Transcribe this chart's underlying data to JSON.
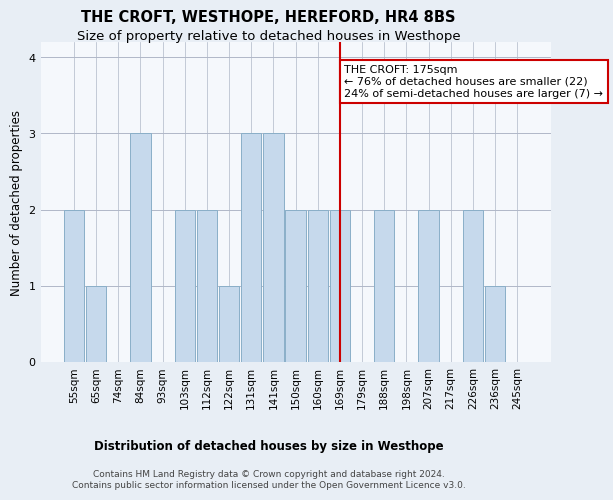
{
  "title": "THE CROFT, WESTHOPE, HEREFORD, HR4 8BS",
  "subtitle": "Size of property relative to detached houses in Westhope",
  "xlabel": "Distribution of detached houses by size in Westhope",
  "ylabel": "Number of detached properties",
  "bar_labels": [
    "55sqm",
    "65sqm",
    "74sqm",
    "84sqm",
    "93sqm",
    "103sqm",
    "112sqm",
    "122sqm",
    "131sqm",
    "141sqm",
    "150sqm",
    "160sqm",
    "169sqm",
    "179sqm",
    "188sqm",
    "198sqm",
    "207sqm",
    "217sqm",
    "226sqm",
    "236sqm",
    "245sqm"
  ],
  "bar_values": [
    2,
    1,
    0,
    3,
    0,
    2,
    2,
    1,
    3,
    3,
    2,
    2,
    2,
    0,
    2,
    0,
    2,
    0,
    2,
    1,
    0
  ],
  "bar_color": "#c6d9ec",
  "bar_edgecolor": "#8aafc8",
  "vline_index": 12,
  "vline_color": "#cc0000",
  "annotation_text": "THE CROFT: 175sqm\n← 76% of detached houses are smaller (22)\n24% of semi-detached houses are larger (7) →",
  "annotation_box_color": "#cc0000",
  "ylim": [
    0,
    4.2
  ],
  "yticks": [
    0,
    1,
    2,
    3,
    4
  ],
  "footer_line1": "Contains HM Land Registry data © Crown copyright and database right 2024.",
  "footer_line2": "Contains public sector information licensed under the Open Government Licence v3.0.",
  "background_color": "#e8eef5",
  "plot_bg_color": "#f5f8fc",
  "title_fontsize": 10.5,
  "subtitle_fontsize": 9.5,
  "xlabel_fontsize": 8.5,
  "ylabel_fontsize": 8.5,
  "tick_fontsize": 7.5,
  "footer_fontsize": 6.5,
  "annot_fontsize": 8
}
